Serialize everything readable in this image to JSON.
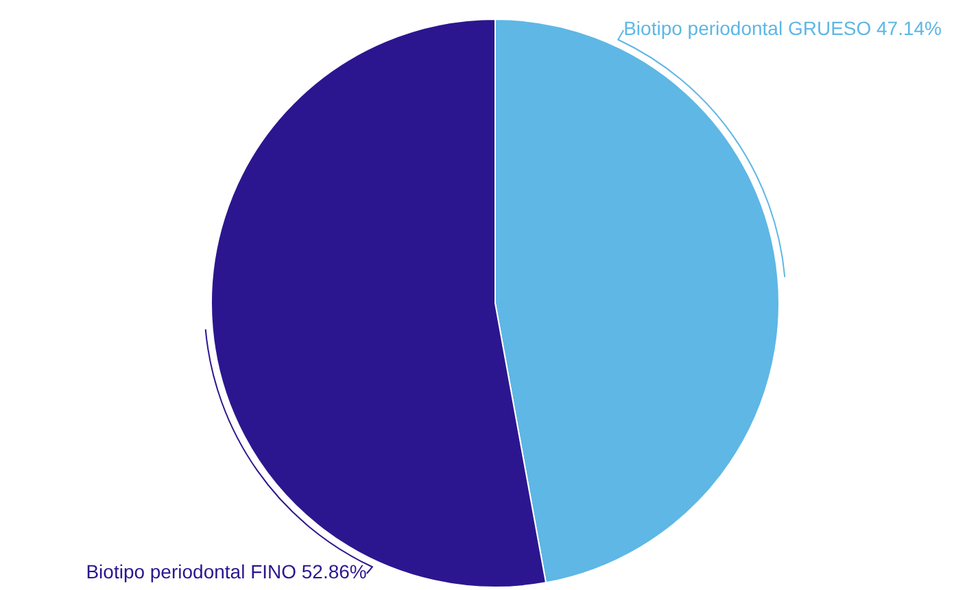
{
  "chart_data": {
    "type": "pie",
    "categories": [
      "Biotipo periodontal GRUESO",
      "Biotipo periodontal FINO"
    ],
    "values": [
      47.14,
      52.86
    ],
    "colors": [
      "#5eb7e5",
      "#2c168f"
    ],
    "value_labels": [
      "47.14%",
      "52.86%"
    ]
  }
}
